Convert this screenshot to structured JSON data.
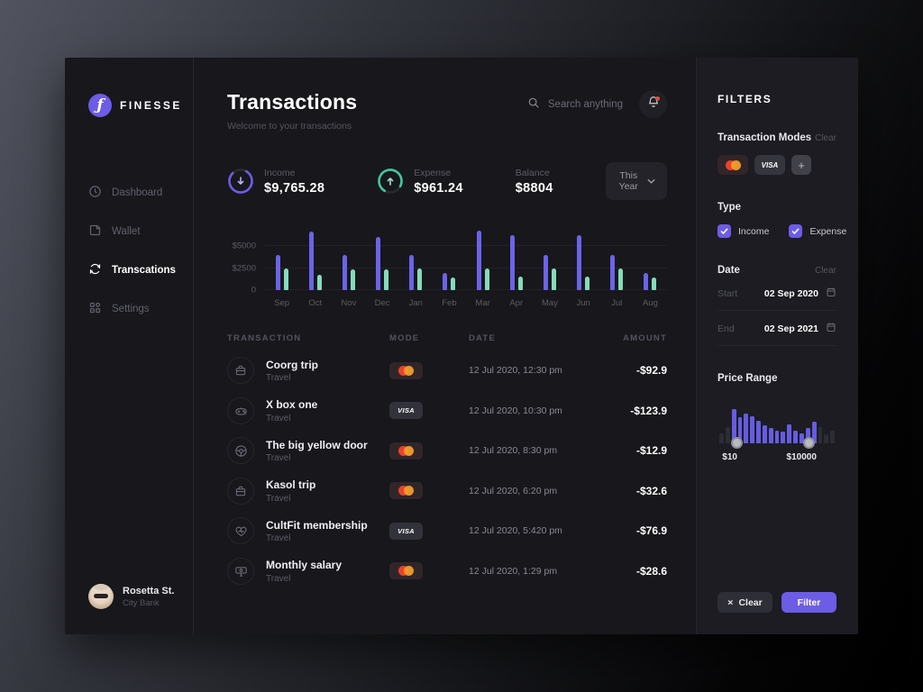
{
  "app": {
    "name": "FINESSE"
  },
  "sidebar": {
    "items": [
      {
        "label": "Dashboard"
      },
      {
        "label": "Wallet"
      },
      {
        "label": "Transcations"
      },
      {
        "label": "Settings"
      }
    ],
    "user": {
      "name": "Rosetta St.",
      "bank": "City Bank"
    }
  },
  "header": {
    "title": "Transactions",
    "subtitle": "Welcome to your transactions",
    "search_placeholder": "Search anything"
  },
  "stats": {
    "income_label": "Income",
    "income_value": "$9,765.28",
    "expense_label": "Expense",
    "expense_value": "$961.24",
    "balance_label": "Balance",
    "balance_value": "$8804",
    "period": "This Year"
  },
  "chart_data": {
    "type": "bar",
    "categories": [
      "Sep",
      "Oct",
      "Nov",
      "Dec",
      "Jan",
      "Feb",
      "Mar",
      "Apr",
      "May",
      "Jun",
      "Jul",
      "Aug"
    ],
    "series": [
      {
        "name": "income",
        "color": "#6c63e8",
        "values": [
          4000,
          6700,
          4000,
          6100,
          4000,
          2000,
          6800,
          6300,
          4000,
          6300,
          4000,
          2000
        ]
      },
      {
        "name": "expense",
        "color": "#84dcba",
        "values": [
          2500,
          1700,
          2400,
          2400,
          2500,
          1400,
          2500,
          1500,
          2500,
          1500,
          2500,
          1400
        ]
      }
    ],
    "title": "",
    "xlabel": "",
    "ylabel": "",
    "ylim": [
      0,
      7200
    ],
    "yticks": [
      {
        "value": 0,
        "label": "0"
      },
      {
        "value": 2500,
        "label": "$2500"
      },
      {
        "value": 5000,
        "label": "$5000"
      }
    ],
    "grid": true,
    "legend": false
  },
  "table": {
    "headers": [
      "TRANSACTION",
      "MODE",
      "DATE",
      "AMOUNT"
    ],
    "rows": [
      {
        "title": "Coorg trip",
        "category": "Travel",
        "mode": "mastercard",
        "mode_label": "",
        "date": "12 Jul 2020, 12:30 pm",
        "amount": "-$92.9"
      },
      {
        "title": "X box one",
        "category": "Travel",
        "mode": "visa",
        "mode_label": "VISA",
        "date": "12 Jul 2020, 10:30 pm",
        "amount": "-$123.9"
      },
      {
        "title": "The big yellow door",
        "category": "Travel",
        "mode": "mastercard",
        "mode_label": "",
        "date": "12 Jul 2020, 8:30 pm",
        "amount": "-$12.9"
      },
      {
        "title": "Kasol trip",
        "category": "Travel",
        "mode": "mastercard",
        "mode_label": "",
        "date": "12 Jul 2020, 6:20 pm",
        "amount": "-$32.6"
      },
      {
        "title": "CultFit membership",
        "category": "Travel",
        "mode": "visa",
        "mode_label": "VISA",
        "date": "12 Jul 2020, 5:420 pm",
        "amount": "-$76.9"
      },
      {
        "title": "Monthly salary",
        "category": "Travel",
        "mode": "mastercard",
        "mode_label": "",
        "date": "12 Jul 2020, 1:29 pm",
        "amount": "-$28.6"
      }
    ]
  },
  "filters": {
    "title": "FILTERS",
    "transaction_modes": {
      "label": "Transaction Modes",
      "clear": "Clear",
      "visa_label": "VISA"
    },
    "type": {
      "label": "Type",
      "options": [
        {
          "label": "Income",
          "checked": true
        },
        {
          "label": "Expense",
          "checked": true
        }
      ]
    },
    "date": {
      "label": "Date",
      "clear": "Clear",
      "start_label": "Start",
      "start_value": "02 Sep 2020",
      "end_label": "End",
      "end_value": "02 Sep 2021"
    },
    "price_range": {
      "label": "Price Range",
      "min_label": "$10",
      "max_label": "$10000",
      "bars": [
        30,
        48,
        100,
        76,
        86,
        80,
        66,
        52,
        44,
        38,
        33,
        55,
        36,
        30,
        46,
        62,
        48,
        26,
        36
      ],
      "in_range": [
        false,
        false,
        true,
        true,
        true,
        true,
        true,
        true,
        true,
        true,
        true,
        true,
        true,
        true,
        true,
        true,
        false,
        false,
        false
      ],
      "handle_positions_pct": [
        11,
        72
      ]
    },
    "clear_button": "Clear",
    "filter_button": "Filter"
  },
  "icons": {
    "add": "+",
    "close": "×"
  },
  "colors": {
    "accent": "#6d5ce6",
    "chart_income": "#6c63e8",
    "chart_expense": "#84dcba",
    "mastercard_red": "#e8432c",
    "mastercard_orange": "#f6a12c",
    "notification_dot": "#e0503c",
    "card_bg": "#17171c",
    "panel_bg": "#1c1c22"
  }
}
